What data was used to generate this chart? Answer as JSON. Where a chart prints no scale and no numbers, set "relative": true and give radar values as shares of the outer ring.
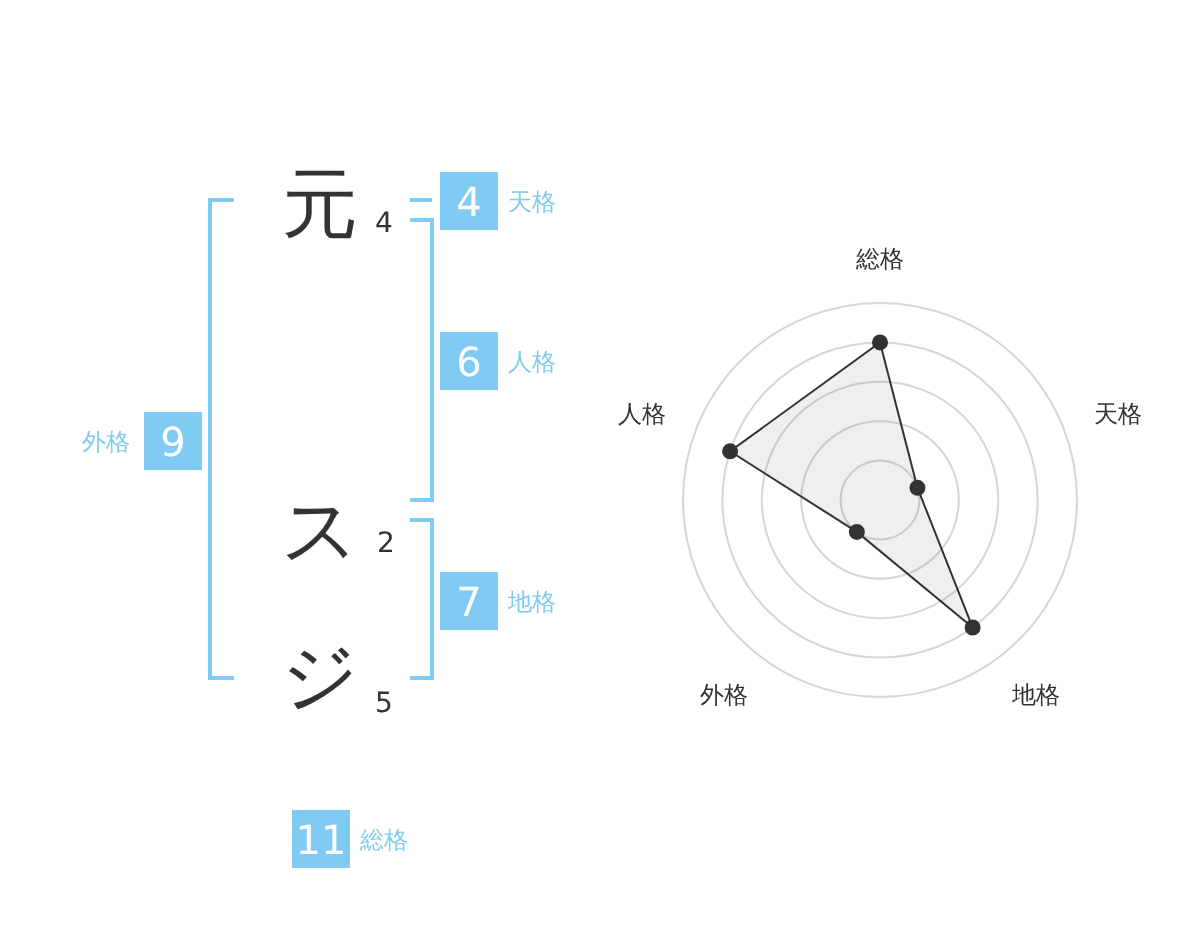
{
  "chart_data": [
    {
      "type": "other",
      "categories": [
        "元",
        "ス",
        "ジ"
      ],
      "values": [
        4,
        2,
        5
      ],
      "data_labels": true,
      "annotations": [
        "4",
        "天格",
        "6",
        "人格",
        "9",
        "外格",
        "7",
        "地格",
        "11",
        "総格"
      ],
      "color": "#80cbf3"
    },
    {
      "type": "radar",
      "categories": [
        "総格",
        "天格",
        "地格",
        "外格",
        "人格"
      ],
      "relative": true,
      "grid": true,
      "marker": "circle",
      "series": [
        {
          "color": "#333333",
          "values": [
            0.8,
            0.2,
            0.8,
            0.2,
            0.8
          ]
        }
      ]
    }
  ]
}
